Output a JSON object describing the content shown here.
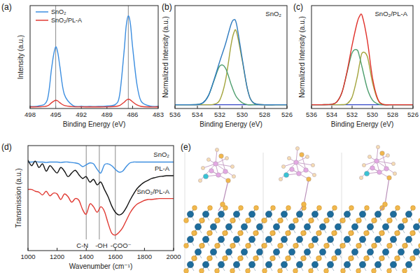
{
  "chart_data": [
    {
      "type": "line",
      "title": "(a)",
      "x_label": "Binding Energy (eV)",
      "y_label": "Intensity (a.u.)",
      "x": [
        498,
        497,
        496,
        495.5,
        495.25,
        495,
        494.75,
        494.5,
        494,
        493,
        492,
        491,
        490,
        489,
        488,
        487.5,
        487,
        486.75,
        486.5,
        486.25,
        486,
        485.5,
        485,
        484,
        483
      ],
      "series": [
        {
          "name": "SnO₂",
          "color": "#3c8ee0",
          "values": [
            2,
            2.5,
            8,
            38,
            52,
            60,
            54,
            40,
            14,
            3,
            2,
            2,
            2,
            2.5,
            4,
            14,
            55,
            80,
            90,
            82,
            60,
            24,
            7,
            2.5,
            2
          ]
        },
        {
          "name": "SnO₂/PL-A",
          "color": "#e03a33",
          "values": [
            1.5,
            1.6,
            2.5,
            5.5,
            7,
            8,
            7.3,
            5.5,
            3,
            1.8,
            1.6,
            1.5,
            1.5,
            1.6,
            2,
            3,
            6,
            8,
            9,
            8.3,
            6.5,
            3.5,
            2,
            1.5,
            1.5
          ]
        }
      ],
      "xlim": [
        498,
        483
      ],
      "xticks": [
        498,
        495,
        492,
        489,
        486,
        483
      ],
      "ylim": [
        0,
        100
      ],
      "reference_lines": [
        495,
        486.5
      ],
      "legend": "upper left",
      "tick_labels": "x",
      "grid": false
    },
    {
      "type": "line",
      "title": "(b)",
      "subtitle": "SnO₂",
      "x_label": "Binding Energy (eV)",
      "y_label": "Normalized Intensity (a.u.)",
      "x": [
        536,
        535,
        534,
        533.5,
        533,
        532.5,
        532,
        531.5,
        531,
        530.75,
        530.5,
        530,
        529.5,
        529,
        528,
        527,
        526
      ],
      "series": [
        {
          "color": "#3346c8",
          "values": [
            0,
            0,
            0,
            0,
            0,
            0,
            0,
            0,
            0,
            0,
            0,
            0,
            0,
            0,
            0,
            0,
            0
          ]
        },
        {
          "color": "#a3a43c",
          "values": [
            0,
            0,
            0,
            0,
            0,
            0.005,
            0.05,
            0.25,
            0.63,
            0.76,
            0.77,
            0.47,
            0.15,
            0.02,
            0,
            0,
            0
          ]
        },
        {
          "color": "#4e9e6e",
          "values": [
            0,
            0,
            0.003,
            0.02,
            0.1,
            0.26,
            0.41,
            0.39,
            0.22,
            0.14,
            0.08,
            0.02,
            0,
            0,
            0,
            0,
            0
          ]
        },
        {
          "color": "#2f7bbf",
          "values": [
            0,
            0,
            0.003,
            0.02,
            0.1,
            0.27,
            0.46,
            0.64,
            0.85,
            0.9,
            0.85,
            0.49,
            0.15,
            0.02,
            0,
            0,
            0
          ]
        }
      ],
      "xlim": [
        536,
        526
      ],
      "xticks": [
        536,
        534,
        532,
        530,
        528,
        526
      ],
      "ylim": [
        -0.04,
        1.05
      ],
      "tick_labels": "x",
      "grid": false
    },
    {
      "type": "line",
      "title": "(c)",
      "subtitle": "SnO₂/PL-A",
      "x_label": "Binding Energy (eV)",
      "y_label": "Normalized Intensity (a.u.)",
      "x": [
        536,
        535,
        534,
        533.5,
        533,
        532.5,
        532,
        531.5,
        531.25,
        531,
        530.5,
        530,
        529.5,
        529,
        528,
        527,
        526
      ],
      "series": [
        {
          "color": "#3346c8",
          "values": [
            0,
            0,
            0,
            0,
            0,
            0,
            0,
            0,
            0,
            0,
            0,
            0,
            0,
            0,
            0,
            0,
            0
          ]
        },
        {
          "color": "#a3a43c",
          "values": [
            0,
            0,
            0,
            0,
            0.001,
            0.01,
            0.08,
            0.29,
            0.44,
            0.55,
            0.51,
            0.24,
            0.06,
            0.006,
            0,
            0,
            0
          ]
        },
        {
          "color": "#4e9e6e",
          "values": [
            0,
            0,
            0.005,
            0.03,
            0.13,
            0.34,
            0.55,
            0.58,
            0.5,
            0.39,
            0.17,
            0.05,
            0.01,
            0,
            0,
            0,
            0
          ]
        },
        {
          "color": "#e0302a",
          "values": [
            0,
            0,
            0.005,
            0.03,
            0.13,
            0.35,
            0.63,
            0.87,
            0.94,
            0.94,
            0.68,
            0.29,
            0.07,
            0.006,
            0,
            0,
            0
          ]
        }
      ],
      "xlim": [
        536,
        526
      ],
      "xticks": [
        536,
        534,
        532,
        530,
        528,
        526
      ],
      "ylim": [
        -0.04,
        1.05
      ],
      "tick_labels": "x",
      "grid": false
    },
    {
      "type": "line",
      "title": "(d)",
      "x_label": "Wavenumber (cm⁻¹)",
      "y_label": "Transmission (a.u.)",
      "x": [
        1000,
        1025,
        1050,
        1075,
        1100,
        1125,
        1150,
        1175,
        1200,
        1225,
        1250,
        1275,
        1300,
        1325,
        1350,
        1375,
        1400,
        1425,
        1450,
        1475,
        1500,
        1525,
        1550,
        1575,
        1600,
        1625,
        1650,
        1675,
        1700,
        1725,
        1750,
        1775,
        1800,
        1825,
        1850,
        1875,
        1900,
        1925,
        1950,
        1975,
        2000
      ],
      "series": [
        {
          "name": "SnO₂",
          "color": "#3c8ee0",
          "values": [
            82,
            82,
            82.5,
            82,
            82,
            81.5,
            82,
            82,
            82,
            81.5,
            82,
            82,
            81.5,
            81,
            80,
            77,
            79,
            81,
            80,
            74,
            70,
            79,
            80,
            78,
            74,
            71,
            72,
            77,
            81,
            82,
            82,
            82,
            82,
            82,
            82,
            82,
            82,
            82,
            82,
            82,
            82
          ]
        },
        {
          "name": "PL-A",
          "color": "#111111",
          "values": [
            84,
            78,
            83,
            76,
            80,
            72,
            78,
            74,
            70,
            76,
            72,
            66,
            70,
            73,
            68,
            64,
            66,
            60,
            63,
            57,
            60,
            52,
            44,
            34,
            27,
            24,
            26,
            32,
            40,
            47,
            53,
            57,
            60,
            62,
            64,
            65,
            66,
            66.5,
            67,
            67,
            67
          ]
        },
        {
          "name": "SnO₂/PL-A",
          "color": "#e03a33",
          "values": [
            52,
            52,
            50,
            49,
            46,
            50,
            45,
            48,
            47,
            41,
            47,
            44,
            38,
            42,
            40,
            30,
            25,
            36,
            33,
            27,
            33,
            28,
            15,
            4,
            2,
            5,
            10,
            18,
            26,
            32,
            36,
            38,
            40,
            41,
            41,
            41.5,
            42,
            42,
            42,
            42,
            42
          ]
        }
      ],
      "xlim": [
        1000,
        2000
      ],
      "xticks": [
        1000,
        1200,
        1400,
        1600,
        1800,
        2000
      ],
      "ylim": [
        -15,
        100
      ],
      "annotations": [
        {
          "x": 1400,
          "text": "C-N"
        },
        {
          "x": 1490,
          "text": "-OH"
        },
        {
          "x": 1600,
          "text": "-COO⁻"
        }
      ],
      "tick_labels": "x",
      "grid": false
    },
    {
      "type": "structure",
      "title": "(e)"
    }
  ]
}
